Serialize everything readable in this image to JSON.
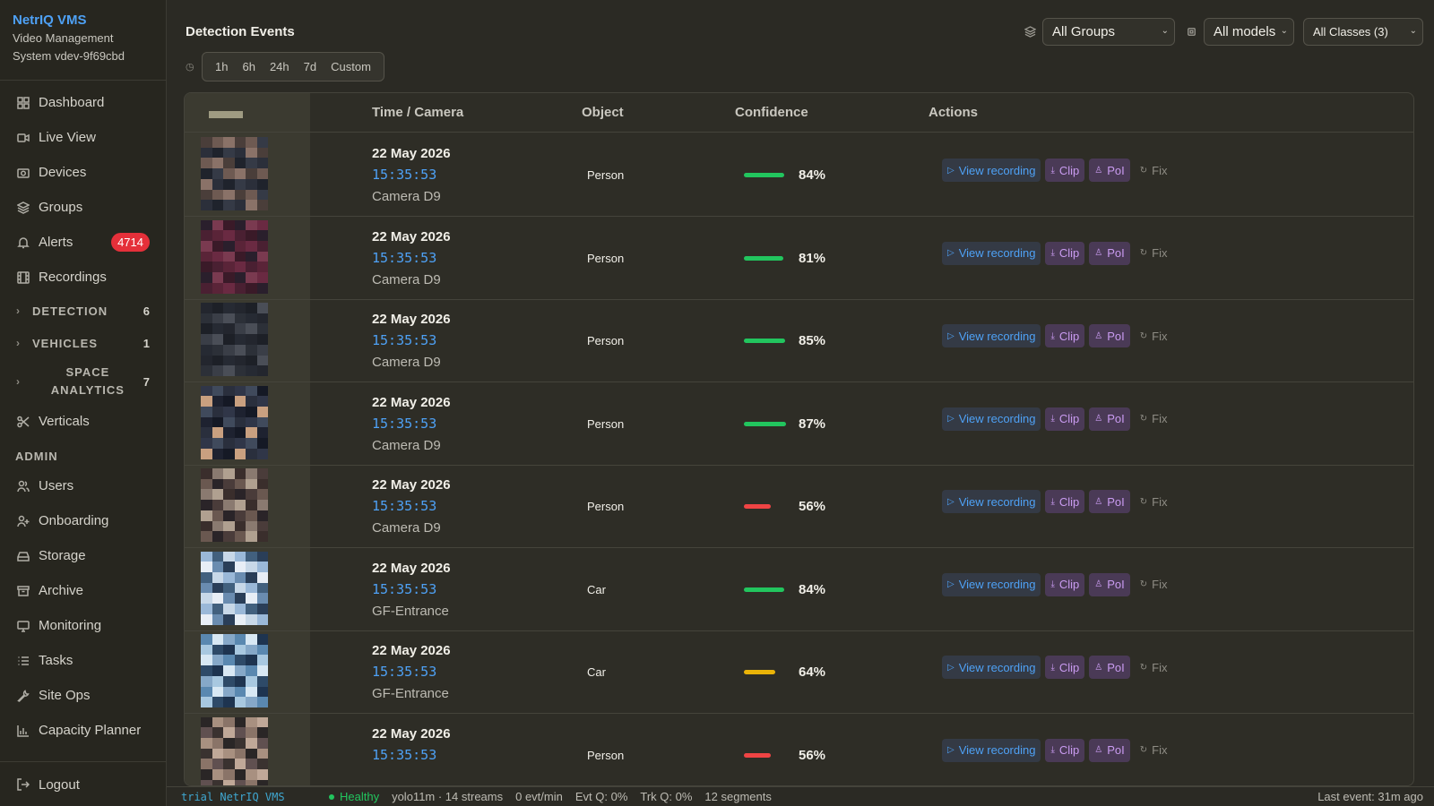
{
  "brand": {
    "name": "NetrIQ VMS",
    "subtitle_line1": "Video Management",
    "subtitle_line2": "System vdev-9f69cbd"
  },
  "nav": [
    {
      "label": "Dashboard",
      "icon": "dashboard-icon"
    },
    {
      "label": "Live View",
      "icon": "video-icon"
    },
    {
      "label": "Devices",
      "icon": "camera-icon"
    },
    {
      "label": "Groups",
      "icon": "layers-icon"
    },
    {
      "label": "Alerts",
      "icon": "bell-icon",
      "badge": "4714"
    },
    {
      "label": "Recordings",
      "icon": "film-icon"
    }
  ],
  "sections": [
    {
      "label": "DETECTION",
      "count": "6"
    },
    {
      "label": "VEHICLES",
      "count": "1"
    },
    {
      "label": "SPACE ANALYTICS",
      "count": "7"
    }
  ],
  "nav_verticals": {
    "label": "Verticals",
    "icon": "scissors-icon"
  },
  "admin": {
    "heading": "ADMIN",
    "items": [
      {
        "label": "Users",
        "icon": "users-icon"
      },
      {
        "label": "Onboarding",
        "icon": "user-plus-icon"
      },
      {
        "label": "Storage",
        "icon": "hard-drive-icon"
      },
      {
        "label": "Archive",
        "icon": "archive-icon"
      },
      {
        "label": "Monitoring",
        "icon": "monitor-icon"
      },
      {
        "label": "Tasks",
        "icon": "list-icon"
      },
      {
        "label": "Site Ops",
        "icon": "wrench-icon"
      },
      {
        "label": "Capacity Planner",
        "icon": "bar-chart-icon"
      }
    ]
  },
  "logout": {
    "label": "Logout"
  },
  "page": {
    "title": "Detection Events"
  },
  "filters": {
    "group": "All Groups",
    "model": "All models",
    "classes": "All Classes (3)"
  },
  "time_range": [
    "1h",
    "6h",
    "24h",
    "7d",
    "Custom"
  ],
  "table": {
    "headers": {
      "time": "Time / Camera",
      "object": "Object",
      "confidence": "Confidence",
      "actions": "Actions"
    },
    "action_labels": {
      "view": "View recording",
      "clip": "Clip",
      "poi": "PoI",
      "fix": "Fix"
    },
    "rows": [
      {
        "date": "22 May 2026",
        "time": "15:35:53",
        "camera": "Camera D9",
        "object": "Person",
        "confidence": "84%",
        "conf_value": 0.84,
        "color": "#22c55e"
      },
      {
        "date": "22 May 2026",
        "time": "15:35:53",
        "camera": "Camera D9",
        "object": "Person",
        "confidence": "81%",
        "conf_value": 0.81,
        "color": "#22c55e"
      },
      {
        "date": "22 May 2026",
        "time": "15:35:53",
        "camera": "Camera D9",
        "object": "Person",
        "confidence": "85%",
        "conf_value": 0.85,
        "color": "#22c55e"
      },
      {
        "date": "22 May 2026",
        "time": "15:35:53",
        "camera": "Camera D9",
        "object": "Person",
        "confidence": "87%",
        "conf_value": 0.87,
        "color": "#22c55e"
      },
      {
        "date": "22 May 2026",
        "time": "15:35:53",
        "camera": "Camera D9",
        "object": "Person",
        "confidence": "56%",
        "conf_value": 0.56,
        "color": "#ef4444"
      },
      {
        "date": "22 May 2026",
        "time": "15:35:53",
        "camera": "GF-Entrance",
        "object": "Car",
        "confidence": "84%",
        "conf_value": 0.84,
        "color": "#22c55e"
      },
      {
        "date": "22 May 2026",
        "time": "15:35:53",
        "camera": "GF-Entrance",
        "object": "Car",
        "confidence": "64%",
        "conf_value": 0.64,
        "color": "#eab308"
      },
      {
        "date": "22 May 2026",
        "time": "15:35:53",
        "camera": "",
        "object": "Person",
        "confidence": "56%",
        "conf_value": 0.56,
        "color": "#ef4444"
      }
    ]
  },
  "status": {
    "ticker": "trial   NetrIQ VMS",
    "health": "Healthy",
    "model": "yolo11m · 14 streams",
    "rate": "0 evt/min",
    "evt_q": "Evt Q: 0%",
    "trk_q": "Trk Q: 0%",
    "segments": "12 segments",
    "last_event": "Last event: 31m ago"
  }
}
